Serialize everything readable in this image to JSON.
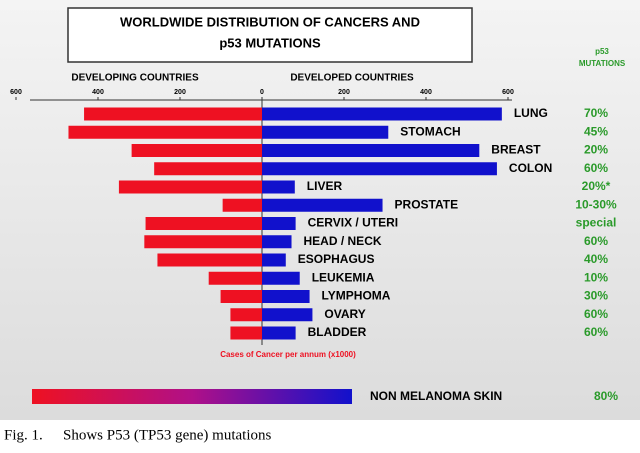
{
  "chart_data": {
    "type": "butterfly",
    "title_lines": [
      "WORLDWIDE DISTRIBUTION OF CANCERS AND",
      "p53 MUTATIONS"
    ],
    "mutation_header": [
      "p53",
      "MUTATIONS"
    ],
    "x_label": "Cases of Cancer per annum (x1000)",
    "categories": [
      "LUNG",
      "STOMACH",
      "BREAST",
      "COLON",
      "LIVER",
      "PROSTATE",
      "CERVIX / UTERI",
      "HEAD  / NECK",
      "ESOPHAGUS",
      "LEUKEMIA",
      "LYMPHOMA",
      "OVARY",
      "BLADDER"
    ],
    "mutations": [
      "70%",
      "45%",
      "20%",
      "60%",
      "20%*",
      "10-30%",
      "special",
      "60%",
      "40%",
      "10%",
      "30%",
      "60%",
      "60%"
    ],
    "series": [
      {
        "name": "DEVELOPING COUNTRIES",
        "color": "#ee1122",
        "side": "left",
        "values": [
          434,
          472,
          318,
          263,
          349,
          96,
          284,
          287,
          255,
          130,
          101,
          77,
          77
        ]
      },
      {
        "name": "DEVELOPED COUNTRIES",
        "color": "#1111cc",
        "side": "right",
        "values": [
          585,
          308,
          530,
          573,
          80,
          294,
          82,
          72,
          58,
          92,
          116,
          123,
          82
        ]
      }
    ],
    "xlim": [
      0,
      600
    ],
    "xticks": [
      0,
      200,
      400,
      600
    ],
    "extra_row": {
      "label": "NON MELANOMA SKIN",
      "mutation": "80%"
    },
    "caption": {
      "number": "Fig. 1.",
      "text": "Shows P53 (TP53 gene) mutations"
    }
  }
}
